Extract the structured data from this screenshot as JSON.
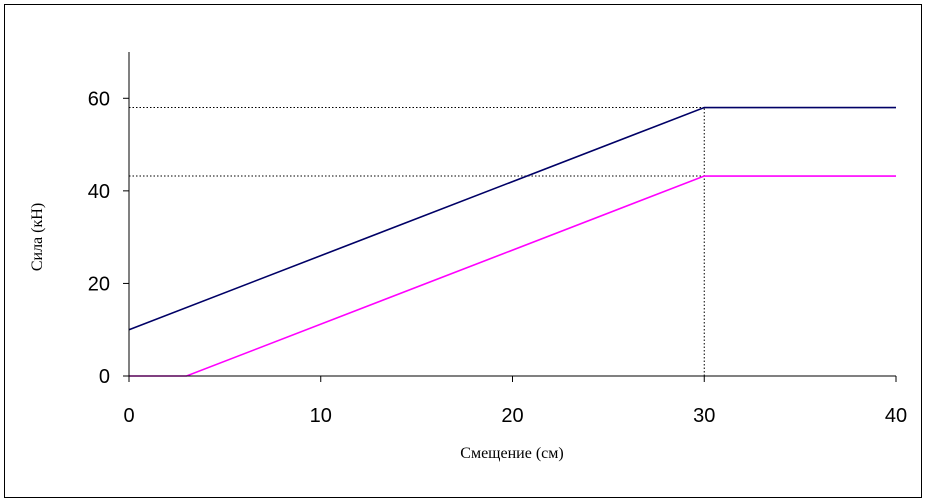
{
  "chart_data": {
    "type": "line",
    "title": "",
    "xlabel": "Смещение (см)",
    "ylabel": "Сила (кН)",
    "xlim": [
      0,
      40
    ],
    "ylim": [
      0,
      70
    ],
    "x_ticks": [
      0,
      10,
      20,
      30,
      40
    ],
    "y_ticks": [
      0,
      20,
      40,
      60
    ],
    "x_tick_labels": [
      "0",
      "10",
      "20",
      "30",
      "40"
    ],
    "y_tick_labels": [
      "0",
      "20",
      "40",
      "60"
    ],
    "grid": false,
    "legend": "none",
    "series": [
      {
        "color": "#000066",
        "x": [
          0,
          30,
          40
        ],
        "y": [
          10,
          58,
          58
        ]
      },
      {
        "color": "#ff00ff",
        "x": [
          0,
          3,
          30,
          40
        ],
        "y": [
          0,
          0,
          43.2,
          43.2
        ]
      }
    ],
    "reference_lines": [
      {
        "orientation": "horizontal",
        "y": 58,
        "x_from": 0,
        "x_to": 30,
        "style": "dotted",
        "color": "#000000"
      },
      {
        "orientation": "horizontal",
        "y": 43.2,
        "x_from": 0,
        "x_to": 30,
        "style": "dotted",
        "color": "#000000"
      },
      {
        "orientation": "vertical",
        "x": 30,
        "y_from": 0,
        "y_to": 58,
        "style": "dotted",
        "color": "#000000"
      }
    ]
  }
}
